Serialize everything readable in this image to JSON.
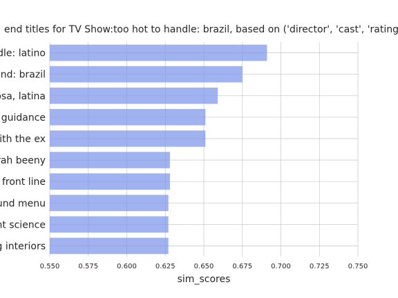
{
  "chart_data": {
    "type": "bar",
    "orientation": "horizontal",
    "title": "end titles for TV Show:too hot to handle: brazil, based on ('director', 'cast', 'rating', 'listed_in', 'd",
    "xlabel": "sim_scores",
    "ylabel": "",
    "categories": [
      "ndle: latino",
      "ound: brazil",
      "nosa, latina",
      "l guidance",
      "with the ex",
      "arah beeny",
      "s front line",
      "ound menu",
      "unt science",
      "ng interiors"
    ],
    "values": [
      0.691,
      0.675,
      0.659,
      0.651,
      0.651,
      0.628,
      0.628,
      0.627,
      0.627,
      0.627
    ],
    "xlim": [
      0.55,
      0.75
    ],
    "xticks": [
      "0.550",
      "0.575",
      "0.600",
      "0.625",
      "0.650",
      "0.675",
      "0.700",
      "0.725",
      "0.750"
    ],
    "grid": true,
    "bar_color": "#7b96ea"
  }
}
